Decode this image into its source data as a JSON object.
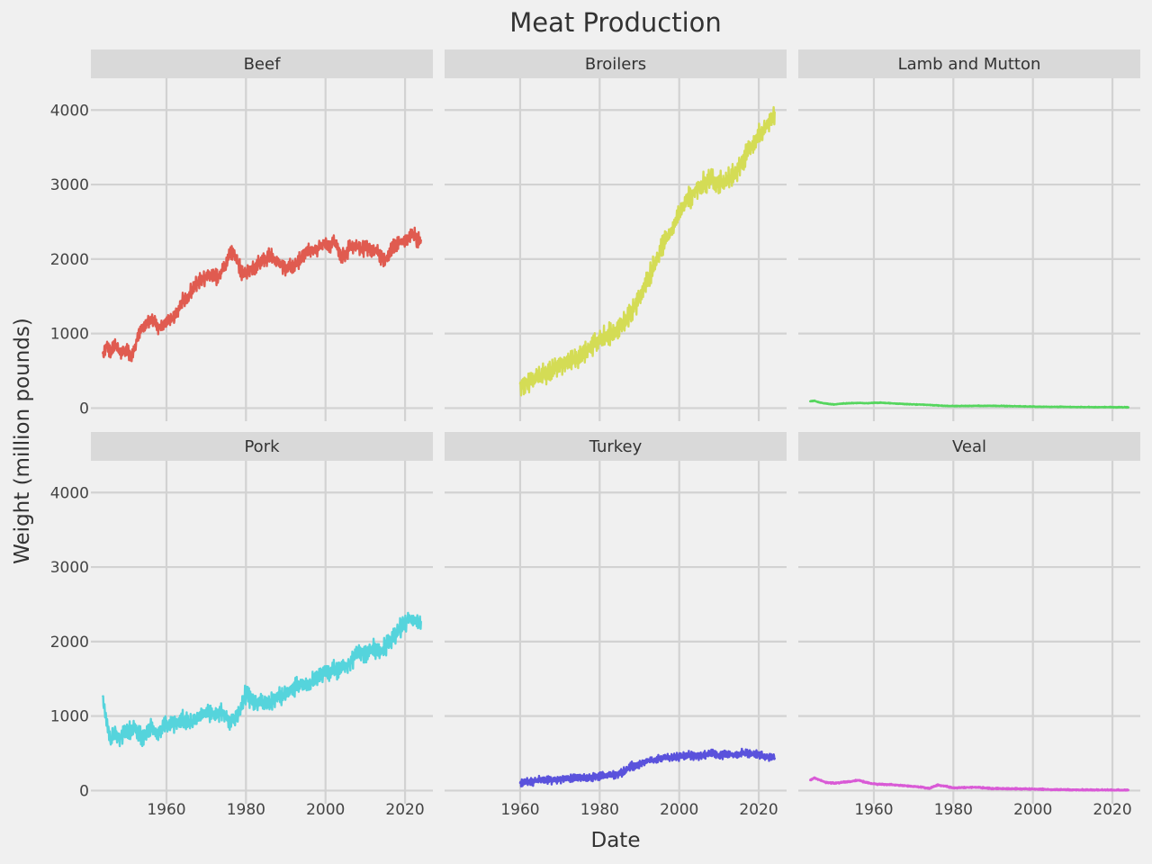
{
  "chart_data": {
    "type": "line",
    "title": "Meat Production",
    "xlabel": "Date",
    "ylabel": "Weight (million pounds)",
    "facet_layout": "2 rows x 3 columns, shared axes",
    "xlim": [
      1941,
      2027
    ],
    "ylim": [
      -200,
      4450
    ],
    "x_ticks": [
      1960,
      1980,
      2000,
      2020
    ],
    "y_ticks": [
      0,
      1000,
      2000,
      3000,
      4000
    ],
    "grid": true,
    "legend": "none",
    "panels": [
      {
        "name": "Beef",
        "color": "#e05b50",
        "points": [
          [
            1944,
            700
          ],
          [
            1945,
            850
          ],
          [
            1946,
            740
          ],
          [
            1947,
            850
          ],
          [
            1948,
            780
          ],
          [
            1949,
            750
          ],
          [
            1950,
            780
          ],
          [
            1951,
            700
          ],
          [
            1952,
            800
          ],
          [
            1953,
            1000
          ],
          [
            1954,
            1080
          ],
          [
            1955,
            1130
          ],
          [
            1956,
            1200
          ],
          [
            1957,
            1170
          ],
          [
            1958,
            1090
          ],
          [
            1959,
            1110
          ],
          [
            1960,
            1170
          ],
          [
            1961,
            1200
          ],
          [
            1962,
            1220
          ],
          [
            1963,
            1310
          ],
          [
            1964,
            1430
          ],
          [
            1965,
            1460
          ],
          [
            1966,
            1560
          ],
          [
            1967,
            1610
          ],
          [
            1968,
            1700
          ],
          [
            1969,
            1730
          ],
          [
            1970,
            1770
          ],
          [
            1971,
            1780
          ],
          [
            1972,
            1800
          ],
          [
            1973,
            1730
          ],
          [
            1974,
            1860
          ],
          [
            1975,
            1920
          ],
          [
            1976,
            2100
          ],
          [
            1977,
            2050
          ],
          [
            1978,
            1950
          ],
          [
            1979,
            1790
          ],
          [
            1980,
            1800
          ],
          [
            1981,
            1870
          ],
          [
            1982,
            1880
          ],
          [
            1983,
            1950
          ],
          [
            1984,
            1980
          ],
          [
            1985,
            2000
          ],
          [
            1986,
            2060
          ],
          [
            1987,
            1990
          ],
          [
            1988,
            1960
          ],
          [
            1989,
            1920
          ],
          [
            1990,
            1880
          ],
          [
            1991,
            1900
          ],
          [
            1992,
            1910
          ],
          [
            1993,
            1940
          ],
          [
            1994,
            2030
          ],
          [
            1995,
            2100
          ],
          [
            1996,
            2130
          ],
          [
            1997,
            2110
          ],
          [
            1998,
            2130
          ],
          [
            1999,
            2180
          ],
          [
            2000,
            2240
          ],
          [
            2001,
            2170
          ],
          [
            2002,
            2250
          ],
          [
            2003,
            2170
          ],
          [
            2004,
            2020
          ],
          [
            2005,
            2050
          ],
          [
            2006,
            2150
          ],
          [
            2007,
            2170
          ],
          [
            2008,
            2180
          ],
          [
            2009,
            2130
          ],
          [
            2010,
            2160
          ],
          [
            2011,
            2150
          ],
          [
            2012,
            2120
          ],
          [
            2013,
            2110
          ],
          [
            2014,
            2000
          ],
          [
            2015,
            1970
          ],
          [
            2016,
            2080
          ],
          [
            2017,
            2140
          ],
          [
            2018,
            2200
          ],
          [
            2019,
            2240
          ],
          [
            2020,
            2230
          ],
          [
            2021,
            2300
          ],
          [
            2022,
            2330
          ],
          [
            2023,
            2250
          ],
          [
            2024,
            2250
          ]
        ],
        "amplitude": 110
      },
      {
        "name": "Broilers",
        "color": "#d4dc55",
        "points": [
          [
            1960,
            300
          ],
          [
            1962,
            350
          ],
          [
            1964,
            400
          ],
          [
            1966,
            460
          ],
          [
            1968,
            510
          ],
          [
            1970,
            590
          ],
          [
            1972,
            640
          ],
          [
            1974,
            650
          ],
          [
            1976,
            730
          ],
          [
            1978,
            830
          ],
          [
            1980,
            920
          ],
          [
            1982,
            970
          ],
          [
            1984,
            1040
          ],
          [
            1986,
            1140
          ],
          [
            1988,
            1300
          ],
          [
            1990,
            1480
          ],
          [
            1992,
            1700
          ],
          [
            1994,
            1950
          ],
          [
            1996,
            2200
          ],
          [
            1998,
            2380
          ],
          [
            2000,
            2600
          ],
          [
            2002,
            2780
          ],
          [
            2004,
            2920
          ],
          [
            2006,
            3000
          ],
          [
            2008,
            3100
          ],
          [
            2010,
            3000
          ],
          [
            2012,
            3050
          ],
          [
            2014,
            3150
          ],
          [
            2016,
            3350
          ],
          [
            2018,
            3500
          ],
          [
            2020,
            3650
          ],
          [
            2022,
            3800
          ],
          [
            2024,
            3950
          ]
        ],
        "amplitude": 160
      },
      {
        "name": "Lamb and Mutton",
        "color": "#55d65e",
        "points": [
          [
            1944,
            90
          ],
          [
            1945,
            100
          ],
          [
            1946,
            80
          ],
          [
            1948,
            60
          ],
          [
            1950,
            50
          ],
          [
            1952,
            60
          ],
          [
            1954,
            65
          ],
          [
            1956,
            70
          ],
          [
            1958,
            65
          ],
          [
            1960,
            70
          ],
          [
            1962,
            72
          ],
          [
            1964,
            65
          ],
          [
            1966,
            60
          ],
          [
            1968,
            55
          ],
          [
            1970,
            50
          ],
          [
            1972,
            48
          ],
          [
            1974,
            42
          ],
          [
            1976,
            36
          ],
          [
            1978,
            30
          ],
          [
            1980,
            27
          ],
          [
            1984,
            30
          ],
          [
            1990,
            30
          ],
          [
            1995,
            26
          ],
          [
            2000,
            20
          ],
          [
            2005,
            17
          ],
          [
            2010,
            15
          ],
          [
            2015,
            13
          ],
          [
            2020,
            12
          ],
          [
            2024,
            11
          ]
        ],
        "amplitude": 6
      },
      {
        "name": "Pork",
        "color": "#55d4dc",
        "points": [
          [
            1944,
            1250
          ],
          [
            1945,
            900
          ],
          [
            1946,
            650
          ],
          [
            1947,
            800
          ],
          [
            1948,
            700
          ],
          [
            1949,
            750
          ],
          [
            1950,
            780
          ],
          [
            1952,
            850
          ],
          [
            1954,
            720
          ],
          [
            1956,
            840
          ],
          [
            1958,
            780
          ],
          [
            1960,
            880
          ],
          [
            1962,
            900
          ],
          [
            1964,
            950
          ],
          [
            1966,
            900
          ],
          [
            1968,
            1000
          ],
          [
            1970,
            1060
          ],
          [
            1972,
            1030
          ],
          [
            1974,
            1050
          ],
          [
            1976,
            940
          ],
          [
            1978,
            1000
          ],
          [
            1980,
            1300
          ],
          [
            1982,
            1180
          ],
          [
            1984,
            1200
          ],
          [
            1986,
            1150
          ],
          [
            1988,
            1290
          ],
          [
            1990,
            1270
          ],
          [
            1992,
            1400
          ],
          [
            1994,
            1450
          ],
          [
            1996,
            1420
          ],
          [
            1998,
            1560
          ],
          [
            2000,
            1570
          ],
          [
            2002,
            1610
          ],
          [
            2004,
            1650
          ],
          [
            2006,
            1700
          ],
          [
            2008,
            1870
          ],
          [
            2010,
            1840
          ],
          [
            2012,
            1900
          ],
          [
            2014,
            1870
          ],
          [
            2016,
            2000
          ],
          [
            2018,
            2120
          ],
          [
            2020,
            2250
          ],
          [
            2021,
            2310
          ],
          [
            2022,
            2260
          ],
          [
            2023,
            2280
          ],
          [
            2024,
            2250
          ]
        ],
        "amplitude": 130
      },
      {
        "name": "Turkey",
        "color": "#5a52dc",
        "points": [
          [
            1960,
            100
          ],
          [
            1962,
            120
          ],
          [
            1964,
            135
          ],
          [
            1966,
            150
          ],
          [
            1968,
            140
          ],
          [
            1970,
            150
          ],
          [
            1972,
            160
          ],
          [
            1974,
            170
          ],
          [
            1976,
            180
          ],
          [
            1978,
            180
          ],
          [
            1980,
            200
          ],
          [
            1982,
            205
          ],
          [
            1984,
            215
          ],
          [
            1986,
            255
          ],
          [
            1988,
            330
          ],
          [
            1990,
            360
          ],
          [
            1992,
            400
          ],
          [
            1994,
            410
          ],
          [
            1996,
            450
          ],
          [
            1998,
            440
          ],
          [
            2000,
            450
          ],
          [
            2002,
            470
          ],
          [
            2004,
            460
          ],
          [
            2006,
            470
          ],
          [
            2008,
            510
          ],
          [
            2010,
            470
          ],
          [
            2012,
            490
          ],
          [
            2014,
            480
          ],
          [
            2016,
            500
          ],
          [
            2018,
            490
          ],
          [
            2020,
            480
          ],
          [
            2022,
            450
          ],
          [
            2024,
            450
          ]
        ],
        "amplitude": 60
      },
      {
        "name": "Veal",
        "color": "#d95ad6",
        "points": [
          [
            1944,
            140
          ],
          [
            1945,
            170
          ],
          [
            1946,
            150
          ],
          [
            1948,
            110
          ],
          [
            1950,
            100
          ],
          [
            1952,
            110
          ],
          [
            1954,
            120
          ],
          [
            1956,
            140
          ],
          [
            1958,
            110
          ],
          [
            1960,
            90
          ],
          [
            1962,
            85
          ],
          [
            1964,
            80
          ],
          [
            1966,
            75
          ],
          [
            1968,
            65
          ],
          [
            1970,
            55
          ],
          [
            1972,
            45
          ],
          [
            1974,
            30
          ],
          [
            1976,
            75
          ],
          [
            1978,
            60
          ],
          [
            1980,
            35
          ],
          [
            1982,
            40
          ],
          [
            1984,
            43
          ],
          [
            1986,
            45
          ],
          [
            1988,
            35
          ],
          [
            1990,
            28
          ],
          [
            1995,
            25
          ],
          [
            2000,
            20
          ],
          [
            2005,
            13
          ],
          [
            2010,
            11
          ],
          [
            2015,
            9
          ],
          [
            2020,
            7
          ],
          [
            2024,
            6
          ]
        ],
        "amplitude": 12
      }
    ]
  }
}
